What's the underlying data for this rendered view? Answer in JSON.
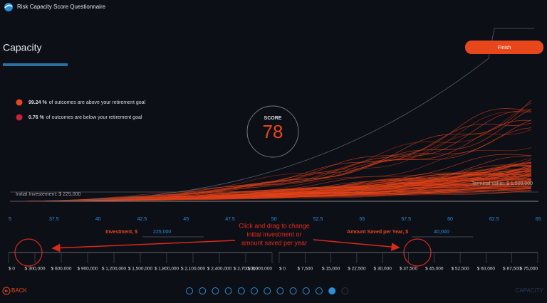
{
  "app": {
    "title": "Risk Capacity Score Questionnaire"
  },
  "page": {
    "heading": "Capacity",
    "finish": "Finish"
  },
  "legend": [
    {
      "percent": "99.24 %",
      "text": "of outcomes are above your retirement goal"
    },
    {
      "percent": "0.76 %",
      "text": "of outcomes are below your retirement goal"
    }
  ],
  "score": {
    "label": "SCORE",
    "value": "78"
  },
  "chart": {
    "initial": "Initial Investement: $ 225,000",
    "terminal": "Terminal value: $ 1,500,000",
    "x_labels": [
      "5",
      "37.5",
      "40",
      "42.5",
      "45",
      "47.5",
      "50",
      "52.5",
      "55",
      "57.5",
      "60",
      "62.5",
      "65"
    ]
  },
  "annotation": [
    "Click and drag to change",
    "initial investment or",
    "amount saved per year"
  ],
  "sliders": [
    {
      "label": "Investment, $",
      "value": "225,000",
      "ticks": [
        "$ 0",
        "$ 300,000",
        "$ 600,000",
        "$ 900,000",
        "$ 1,200,000",
        "$ 1,500,000",
        "$ 1,800,000",
        "$ 2,100,000",
        "$ 2,400,000",
        "$ 2,700,000",
        "$ 3,000,000"
      ]
    },
    {
      "label": "Amount Saved per Year, $",
      "value": "40,000",
      "ticks": [
        "$ 0",
        "$ 7,500",
        "$ 15,000",
        "$ 22,500",
        "$ 30,000",
        "$ 37,500",
        "$ 45,000",
        "$ 52,500",
        "$ 60,000",
        "$ 67,500",
        "$ 75,000"
      ]
    }
  ],
  "footer": {
    "back": "BACK",
    "current": "CAPACITY"
  }
}
